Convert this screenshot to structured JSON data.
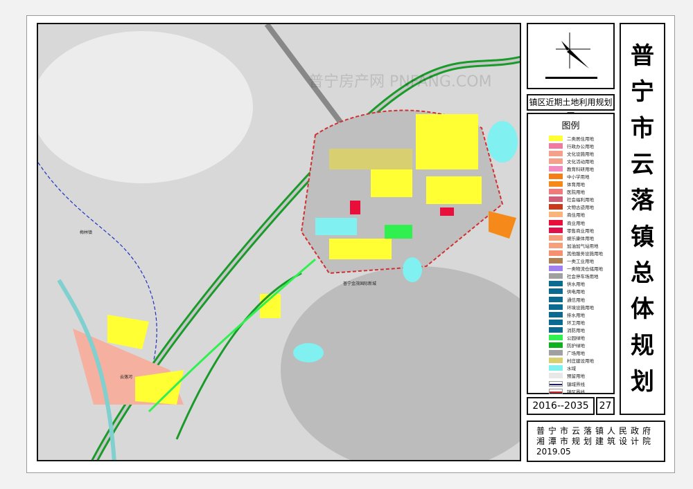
{
  "title_chars": [
    "普",
    "宁",
    "市",
    "云",
    "落",
    "镇",
    "总",
    "体",
    "规",
    "划"
  ],
  "map_subtitle": "镇区近期土地利用规划图",
  "legend": {
    "heading": "图例",
    "items": [
      {
        "label": "二类居住用地",
        "color": "#ffff33"
      },
      {
        "label": "行政办公用地",
        "color": "#f07aa0"
      },
      {
        "label": "文化设施用地",
        "color": "#f5a08a"
      },
      {
        "label": "文化活动用地",
        "color": "#f5a08a"
      },
      {
        "label": "教育科研用地",
        "color": "#f08cc0"
      },
      {
        "label": "中小学用地",
        "color": "#f57f17"
      },
      {
        "label": "体育用地",
        "color": "#f58a1a"
      },
      {
        "label": "医院用地",
        "color": "#f27a7a"
      },
      {
        "label": "社会福利用地",
        "color": "#d0607a"
      },
      {
        "label": "文物古迹用地",
        "color": "#c83a1a"
      },
      {
        "label": "商住用地",
        "color": "#f8b47a"
      },
      {
        "label": "商业用地",
        "color": "#e8103a"
      },
      {
        "label": "零售商业用地",
        "color": "#e0104a"
      },
      {
        "label": "娱乐康体用地",
        "color": "#f5a07a"
      },
      {
        "label": "加油加气站用地",
        "color": "#f5a07a"
      },
      {
        "label": "其他服务设施用地",
        "color": "#f59070"
      },
      {
        "label": "一类工业用地",
        "color": "#b08050"
      },
      {
        "label": "一类物流仓储用地",
        "color": "#a080f0"
      },
      {
        "label": "社会停车场用地",
        "color": "#a0a0a0"
      },
      {
        "label": "供水用地",
        "color": "#0a6a90"
      },
      {
        "label": "供电用地",
        "color": "#0a6a90"
      },
      {
        "label": "通信用地",
        "color": "#0a6a90"
      },
      {
        "label": "环境设施用地",
        "color": "#0a6a90"
      },
      {
        "label": "排水用地",
        "color": "#0a6a90"
      },
      {
        "label": "环卫用地",
        "color": "#0a6a90"
      },
      {
        "label": "消防用地",
        "color": "#0a6a90"
      },
      {
        "label": "公园绿地",
        "color": "#30f050"
      },
      {
        "label": "防护绿地",
        "color": "#10b020"
      },
      {
        "label": "广场用地",
        "color": "#a0a0a0"
      },
      {
        "label": "村庄建设用地",
        "color": "#d8d070"
      },
      {
        "label": "水域",
        "color": "#80f0f0"
      },
      {
        "label": "预留用地",
        "color": "#e8e8e8"
      },
      {
        "label": "镇域界线",
        "color": "#1a1a80"
      },
      {
        "label": "镇区界线",
        "color": "#d03030"
      }
    ]
  },
  "period": "2016--2035",
  "page_number": "27",
  "org": {
    "line1": "普宁市云落镇人民政府",
    "line2": "湘潭市规划建筑设计院",
    "date": "2019.05"
  },
  "map_labels": {
    "town": "梅林镇",
    "newcity": "普宁金茂国际新城",
    "river": "云落河"
  },
  "watermark": "普宁房产网 PNFANG.COM"
}
